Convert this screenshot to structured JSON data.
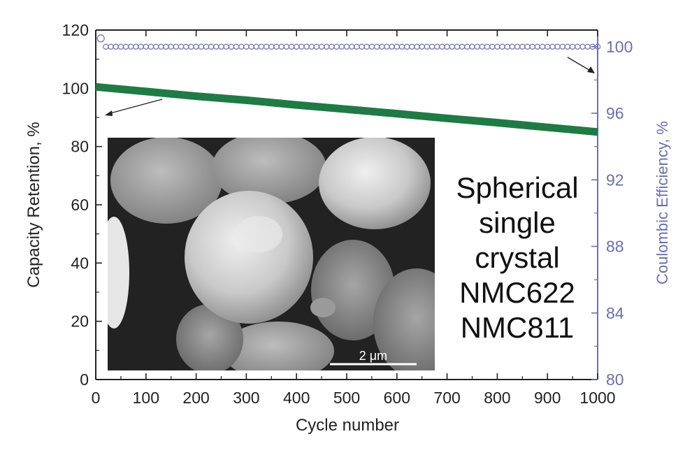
{
  "chart_data": {
    "type": "line",
    "xlabel": "Cycle number",
    "ylabel_left": "Capacity Retention, %",
    "ylabel_right": "Coulombic Efficiency, %",
    "xlim": [
      0,
      1000
    ],
    "ylim_left": [
      0,
      120
    ],
    "ylim_right": [
      80,
      101
    ],
    "x_ticks": [
      0,
      100,
      200,
      300,
      400,
      500,
      600,
      700,
      800,
      900,
      1000
    ],
    "y_left_ticks": [
      0,
      20,
      40,
      60,
      80,
      100,
      120
    ],
    "y_right_ticks": [
      80,
      84,
      88,
      92,
      96,
      100
    ],
    "grid": false,
    "series": [
      {
        "axis": "left",
        "color": "#1f7a45",
        "points": [
          [
            0,
            100.5
          ],
          [
            100,
            98.9
          ],
          [
            200,
            97.3
          ],
          [
            300,
            95.9
          ],
          [
            400,
            94.3
          ],
          [
            500,
            92.8
          ],
          [
            600,
            91.3
          ],
          [
            700,
            89.7
          ],
          [
            800,
            88.2
          ],
          [
            900,
            86.6
          ],
          [
            1000,
            85.0
          ]
        ]
      },
      {
        "axis": "right",
        "color": "#6b6fae",
        "marker": "circle-open",
        "first_point": [
          10,
          100.5
        ],
        "points_from": 20,
        "points_step": 10,
        "points_to": 1000,
        "value": 100
      }
    ],
    "annotations": {
      "inset_text": [
        "Spherical",
        "single",
        "crystal",
        "NMC622",
        "NMC811"
      ],
      "scale_bar": "2 μm"
    }
  },
  "colors": {
    "axis": "#222222",
    "right_axis": "#6b6fae",
    "capacity": "#1f7a45",
    "efficiency": "#6b6fae"
  }
}
